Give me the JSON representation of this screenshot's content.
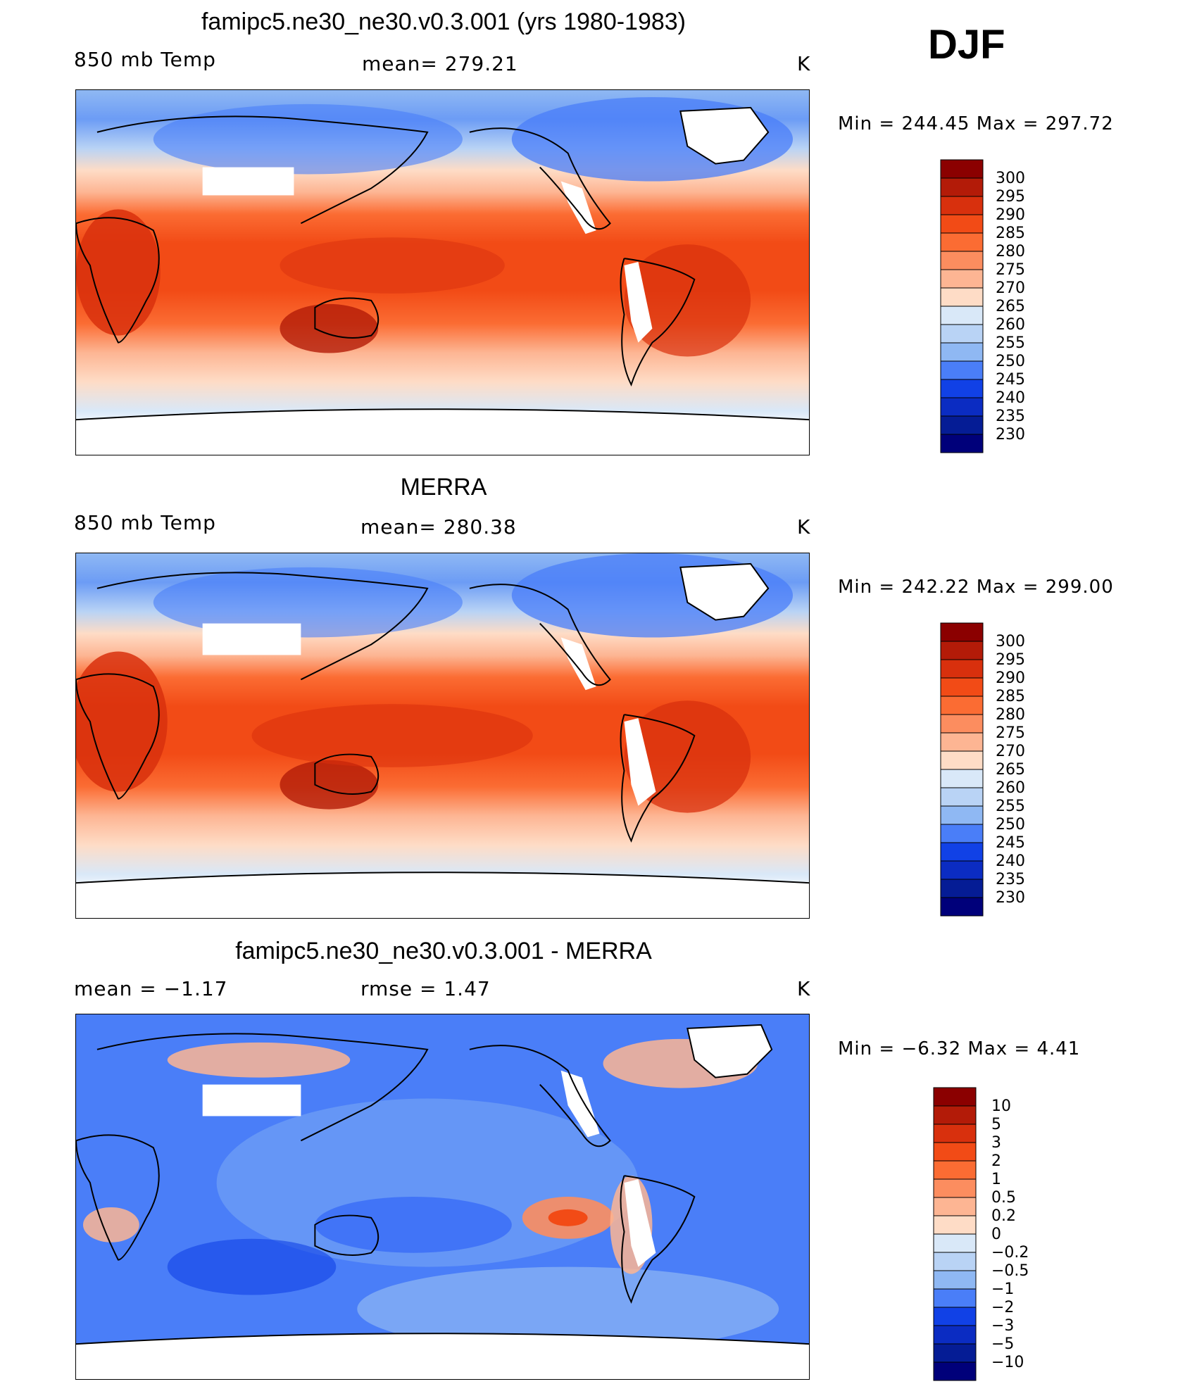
{
  "season": "DJF",
  "chart_data": [
    {
      "type": "heatmap",
      "title": "famipc5.ne30_ne30.v0.3.001 (yrs 1980-1983)",
      "left_label": "850 mb Temp",
      "center_label": "mean= 279.21",
      "units": "K",
      "minmax": "Min = 244.45 Max = 297.72",
      "colorbar": [
        "300",
        "295",
        "290",
        "285",
        "280",
        "275",
        "270",
        "265",
        "260",
        "255",
        "250",
        "245",
        "240",
        "235",
        "230"
      ],
      "colors": [
        "#8b0000",
        "#b31b08",
        "#d8300d",
        "#f24b16",
        "#fb6c33",
        "#fc8d5f",
        "#fdb593",
        "#fedcc6",
        "#fef2e8",
        "#d9e8f8",
        "#b9d3f5",
        "#8fb8f3",
        "#6c9cf5",
        "#4a7ef8",
        "#2a5ef8",
        "#1141e6",
        "#0b2cc2",
        "#051c95"
      ]
    },
    {
      "type": "heatmap",
      "title": "MERRA",
      "left_label": "850 mb Temp",
      "center_label": "mean= 280.38",
      "units": "K",
      "minmax": "Min = 242.22 Max = 299.00",
      "colorbar": [
        "300",
        "295",
        "290",
        "285",
        "280",
        "275",
        "270",
        "265",
        "260",
        "255",
        "250",
        "245",
        "240",
        "235",
        "230"
      ]
    },
    {
      "type": "heatmap",
      "title": "famipc5.ne30_ne30.v0.3.001 - MERRA",
      "left_label": "mean = −1.17",
      "center_label": "rmse = 1.47",
      "units": "K",
      "minmax": "Min = −6.32 Max = 4.41",
      "colorbar": [
        "10",
        "5",
        "3",
        "2",
        "1",
        "0.5",
        "0.2",
        "0",
        "−0.2",
        "−0.5",
        "−1",
        "−2",
        "−3",
        "−5",
        "−10"
      ]
    }
  ]
}
